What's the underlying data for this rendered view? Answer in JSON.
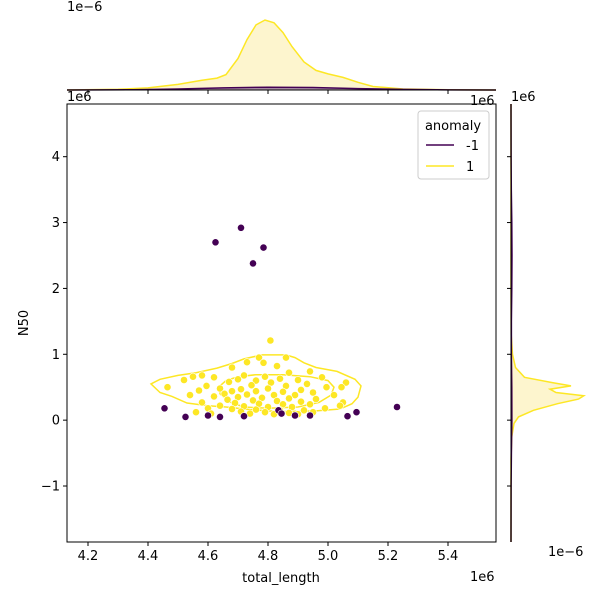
{
  "chart_data": {
    "type": "scatter",
    "variant": "joint plot with KDE marginals",
    "xlabel": "total_length",
    "ylabel": "N50",
    "x_offset_label": "1e6",
    "y_offset_label": "1e6",
    "top_marginal_offset_label": "1e−6",
    "right_marginal_offset_label": "1e−6",
    "x_ticks": [
      4.2,
      4.4,
      4.6,
      4.8,
      5.0,
      5.2,
      5.4
    ],
    "x_tick_labels": [
      "4.2",
      "4.4",
      "4.6",
      "4.8",
      "5.0",
      "5.2",
      "5.4"
    ],
    "y_ticks": [
      -1,
      0,
      1,
      2,
      3,
      4
    ],
    "y_tick_labels": [
      "−1",
      "0",
      "1",
      "2",
      "3",
      "4"
    ],
    "xlim": [
      4.13,
      5.56
    ],
    "ylim": [
      -1.85,
      4.8
    ],
    "legend": {
      "title": "anomaly",
      "placement": "top-right",
      "entries": [
        {
          "label": "-1",
          "color": "#440154"
        },
        {
          "label": "1",
          "color": "#fde725"
        }
      ]
    },
    "series": [
      {
        "name": "-1",
        "color": "#440154",
        "points": [
          [
            4.625,
            2.7
          ],
          [
            4.71,
            2.92
          ],
          [
            4.785,
            2.62
          ],
          [
            4.75,
            2.38
          ],
          [
            4.455,
            0.18
          ],
          [
            4.525,
            0.05
          ],
          [
            4.6,
            0.07
          ],
          [
            4.64,
            0.05
          ],
          [
            4.72,
            0.06
          ],
          [
            4.835,
            0.15
          ],
          [
            4.845,
            0.1
          ],
          [
            4.89,
            0.07
          ],
          [
            4.94,
            0.07
          ],
          [
            5.065,
            0.06
          ],
          [
            5.095,
            0.12
          ],
          [
            5.23,
            0.2
          ]
        ]
      },
      {
        "name": "1",
        "color": "#fde725",
        "points": [
          [
            4.808,
            1.21
          ],
          [
            4.77,
            0.95
          ],
          [
            4.86,
            0.95
          ],
          [
            4.73,
            0.88
          ],
          [
            4.785,
            0.87
          ],
          [
            4.83,
            0.82
          ],
          [
            4.68,
            0.8
          ],
          [
            4.94,
            0.74
          ],
          [
            4.87,
            0.72
          ],
          [
            4.72,
            0.68
          ],
          [
            4.79,
            0.66
          ],
          [
            4.55,
            0.66
          ],
          [
            4.58,
            0.68
          ],
          [
            4.62,
            0.65
          ],
          [
            4.98,
            0.65
          ],
          [
            4.84,
            0.63
          ],
          [
            4.52,
            0.61
          ],
          [
            4.7,
            0.62
          ],
          [
            4.76,
            0.6
          ],
          [
            4.9,
            0.61
          ],
          [
            4.67,
            0.58
          ],
          [
            5.06,
            0.57
          ],
          [
            4.81,
            0.57
          ],
          [
            4.93,
            0.55
          ],
          [
            4.595,
            0.52
          ],
          [
            4.745,
            0.53
          ],
          [
            4.86,
            0.52
          ],
          [
            4.995,
            0.5
          ],
          [
            4.465,
            0.5
          ],
          [
            4.64,
            0.48
          ],
          [
            4.71,
            0.47
          ],
          [
            4.8,
            0.48
          ],
          [
            4.91,
            0.46
          ],
          [
            5.045,
            0.5
          ],
          [
            4.57,
            0.45
          ],
          [
            4.68,
            0.44
          ],
          [
            4.76,
            0.44
          ],
          [
            4.85,
            0.43
          ],
          [
            4.95,
            0.42
          ],
          [
            4.655,
            0.4
          ],
          [
            4.73,
            0.39
          ],
          [
            4.82,
            0.38
          ],
          [
            4.89,
            0.38
          ],
          [
            5.02,
            0.38
          ],
          [
            4.54,
            0.38
          ],
          [
            4.62,
            0.36
          ],
          [
            4.7,
            0.35
          ],
          [
            4.78,
            0.34
          ],
          [
            4.87,
            0.33
          ],
          [
            4.96,
            0.32
          ],
          [
            4.665,
            0.31
          ],
          [
            4.75,
            0.3
          ],
          [
            4.83,
            0.29
          ],
          [
            4.91,
            0.28
          ],
          [
            5.05,
            0.27
          ],
          [
            4.58,
            0.27
          ],
          [
            4.69,
            0.26
          ],
          [
            4.77,
            0.25
          ],
          [
            4.85,
            0.24
          ],
          [
            4.94,
            0.24
          ],
          [
            4.64,
            0.22
          ],
          [
            4.72,
            0.21
          ],
          [
            4.8,
            0.2
          ],
          [
            4.88,
            0.2
          ],
          [
            5.04,
            0.22
          ],
          [
            4.6,
            0.18
          ],
          [
            4.68,
            0.17
          ],
          [
            4.76,
            0.16
          ],
          [
            4.84,
            0.15
          ],
          [
            4.92,
            0.15
          ],
          [
            4.99,
            0.18
          ],
          [
            4.71,
            0.13
          ],
          [
            4.79,
            0.12
          ],
          [
            4.87,
            0.11
          ],
          [
            4.95,
            0.12
          ],
          [
            4.74,
            0.1
          ],
          [
            4.82,
            0.09
          ],
          [
            4.9,
            0.09
          ],
          [
            4.56,
            0.12
          ],
          [
            4.61,
            0.1
          ]
        ]
      }
    ],
    "kde_contours": [
      {
        "series": "1",
        "color": "#fde725",
        "level": "outer",
        "path": [
          [
            4.41,
            0.55
          ],
          [
            4.44,
            0.62
          ],
          [
            4.5,
            0.68
          ],
          [
            4.56,
            0.72
          ],
          [
            4.63,
            0.79
          ],
          [
            4.68,
            0.86
          ],
          [
            4.72,
            0.93
          ],
          [
            4.78,
            0.99
          ],
          [
            4.86,
            0.99
          ],
          [
            4.89,
            0.95
          ],
          [
            4.92,
            0.87
          ],
          [
            4.96,
            0.8
          ],
          [
            5.03,
            0.74
          ],
          [
            5.09,
            0.62
          ],
          [
            5.11,
            0.52
          ],
          [
            5.1,
            0.35
          ],
          [
            5.08,
            0.25
          ],
          [
            5.04,
            0.17
          ],
          [
            4.96,
            0.14
          ],
          [
            4.84,
            0.13
          ],
          [
            4.74,
            0.16
          ],
          [
            4.66,
            0.2
          ],
          [
            4.6,
            0.22
          ],
          [
            4.53,
            0.26
          ],
          [
            4.48,
            0.36
          ],
          [
            4.44,
            0.42
          ],
          [
            4.41,
            0.55
          ]
        ]
      },
      {
        "series": "1",
        "color": "#fde725",
        "level": "inner",
        "path": [
          [
            4.66,
            0.6
          ],
          [
            4.7,
            0.66
          ],
          [
            4.76,
            0.69
          ],
          [
            4.85,
            0.69
          ],
          [
            4.94,
            0.66
          ],
          [
            5.0,
            0.6
          ],
          [
            5.02,
            0.5
          ],
          [
            5.01,
            0.38
          ],
          [
            4.97,
            0.27
          ],
          [
            4.9,
            0.2
          ],
          [
            4.8,
            0.18
          ],
          [
            4.72,
            0.2
          ],
          [
            4.67,
            0.28
          ],
          [
            4.64,
            0.4
          ],
          [
            4.64,
            0.52
          ],
          [
            4.66,
            0.6
          ]
        ]
      }
    ],
    "marginal_x": {
      "position": "top",
      "series": [
        {
          "name": "1",
          "color": "#fde725",
          "fill": "#fdf3c6",
          "curve": [
            [
              4.13,
              0.0
            ],
            [
              4.3,
              0.01
            ],
            [
              4.4,
              0.03
            ],
            [
              4.5,
              0.08
            ],
            [
              4.58,
              0.14
            ],
            [
              4.63,
              0.17
            ],
            [
              4.66,
              0.22
            ],
            [
              4.7,
              0.45
            ],
            [
              4.73,
              0.72
            ],
            [
              4.76,
              0.93
            ],
            [
              4.79,
              1.0
            ],
            [
              4.82,
              0.96
            ],
            [
              4.85,
              0.82
            ],
            [
              4.88,
              0.62
            ],
            [
              4.92,
              0.4
            ],
            [
              4.96,
              0.28
            ],
            [
              5.0,
              0.23
            ],
            [
              5.05,
              0.18
            ],
            [
              5.1,
              0.11
            ],
            [
              5.15,
              0.05
            ],
            [
              5.25,
              0.015
            ],
            [
              5.4,
              0.003
            ],
            [
              5.56,
              0.0
            ]
          ]
        },
        {
          "name": "-1",
          "color": "#440154",
          "fill": "#a68aa8",
          "curve": [
            [
              4.13,
              0.0
            ],
            [
              4.35,
              0.004
            ],
            [
              4.5,
              0.015
            ],
            [
              4.65,
              0.03
            ],
            [
              4.8,
              0.04
            ],
            [
              4.95,
              0.035
            ],
            [
              5.1,
              0.02
            ],
            [
              5.25,
              0.008
            ],
            [
              5.4,
              0.002
            ],
            [
              5.56,
              0.0
            ]
          ]
        }
      ]
    },
    "marginal_y": {
      "position": "right",
      "series": [
        {
          "name": "1",
          "color": "#fde725",
          "fill": "#fdf3c6",
          "curve": [
            [
              -1.85,
              0.0
            ],
            [
              -0.6,
              0.0
            ],
            [
              -0.25,
              0.01
            ],
            [
              -0.05,
              0.04
            ],
            [
              0.05,
              0.1
            ],
            [
              0.15,
              0.3
            ],
            [
              0.25,
              0.62
            ],
            [
              0.32,
              0.9
            ],
            [
              0.37,
              0.97
            ],
            [
              0.42,
              0.6
            ],
            [
              0.47,
              0.52
            ],
            [
              0.52,
              0.8
            ],
            [
              0.57,
              0.55
            ],
            [
              0.65,
              0.18
            ],
            [
              0.8,
              0.06
            ],
            [
              1.0,
              0.02
            ],
            [
              1.3,
              0.003
            ],
            [
              2.0,
              0.0
            ],
            [
              4.8,
              0.0
            ]
          ]
        },
        {
          "name": "-1",
          "color": "#440154",
          "fill": "#a68aa8",
          "curve": [
            [
              -1.85,
              0.0
            ],
            [
              -1.0,
              0.002
            ],
            [
              -0.5,
              0.005
            ],
            [
              0.0,
              0.012
            ],
            [
              0.5,
              0.01
            ],
            [
              1.0,
              0.006
            ],
            [
              1.5,
              0.006
            ],
            [
              2.0,
              0.01
            ],
            [
              2.5,
              0.014
            ],
            [
              3.0,
              0.01
            ],
            [
              3.5,
              0.004
            ],
            [
              4.0,
              0.0015
            ],
            [
              4.8,
              0.0
            ]
          ]
        }
      ]
    }
  }
}
